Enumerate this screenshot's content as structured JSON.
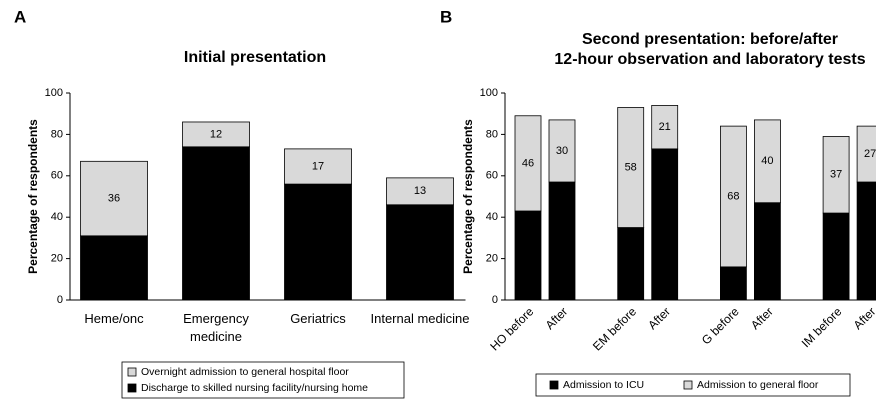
{
  "chart_data": [
    {
      "type": "stacked_bar",
      "panel_label": "A",
      "title": [
        "Initial presentation"
      ],
      "ylabel": "Percentage of respondents",
      "categories": [
        "Heme/onc",
        "Emergency medicine",
        "Geriatrics",
        "Internal medicine"
      ],
      "series": [
        {
          "name": "Discharge to skilled nursing facility/nursing home",
          "color": "#000000",
          "values": [
            31,
            74,
            56,
            46
          ]
        },
        {
          "name": "Overnight admission to general hospital floor",
          "color": "#d9d9d9",
          "values": [
            36,
            12,
            17,
            13
          ]
        }
      ],
      "ylim": [
        0,
        100
      ],
      "yticks": [
        0,
        20,
        40,
        60,
        80,
        100
      ],
      "legend": "bottom",
      "legend_order": "reversed"
    },
    {
      "type": "stacked_bar",
      "panel_label": "B",
      "title": [
        "Second presentation: before/after",
        "12-hour observation and laboratory tests"
      ],
      "ylabel": "Percentage of respondents",
      "categories": [
        "HO before",
        "After",
        "EM before",
        "After",
        "G before",
        "After",
        "IM before",
        "After"
      ],
      "series": [
        {
          "name": "Admission to ICU",
          "color": "#000000",
          "values": [
            43,
            57,
            35,
            73,
            16,
            47,
            42,
            57
          ]
        },
        {
          "name": "Admission to general floor",
          "color": "#d9d9d9",
          "values": [
            46,
            30,
            58,
            21,
            68,
            40,
            37,
            27
          ]
        }
      ],
      "ylim": [
        0,
        100
      ],
      "yticks": [
        0,
        20,
        40,
        60,
        80,
        100
      ],
      "legend": "bottom",
      "legend_order": "normal"
    }
  ]
}
